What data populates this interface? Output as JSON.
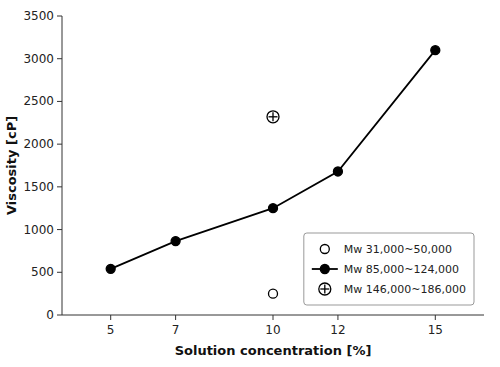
{
  "chart_data": {
    "type": "line",
    "xlabel": "Solution concentration [%]",
    "ylabel": "Viscosity [cP]",
    "xlim": [
      3.5,
      16.5
    ],
    "ylim": [
      0,
      3500
    ],
    "xticks": [
      5,
      7,
      10,
      12,
      15
    ],
    "yticks": [
      0,
      500,
      1000,
      1500,
      2000,
      2500,
      3000,
      3500
    ],
    "legend": "lower right",
    "series": [
      {
        "name": "Mw 31,000~50,000",
        "type": "scatter",
        "marker": "open-circle",
        "color": "black",
        "x": [
          10
        ],
        "values": [
          250
        ]
      },
      {
        "name": "Mw 85,000~124,000",
        "type": "line",
        "marker": "filled-circle",
        "color": "black",
        "x": [
          5,
          7,
          10,
          12,
          15
        ],
        "values": [
          540,
          865,
          1250,
          1680,
          3100
        ]
      },
      {
        "name": "Mw 146,000~186,000",
        "type": "scatter",
        "marker": "circled-plus",
        "color": "black",
        "x": [
          10
        ],
        "values": [
          2320
        ]
      }
    ]
  }
}
